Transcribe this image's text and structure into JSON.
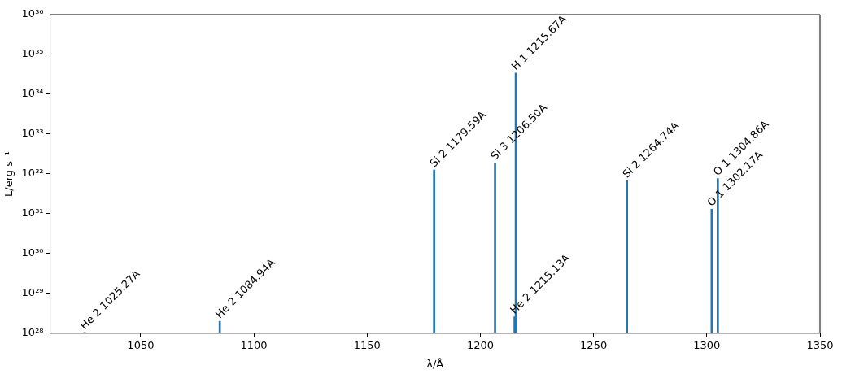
{
  "chart_data": {
    "type": "bar",
    "xlabel": "λ/Å",
    "ylabel": "L/erg s⁻¹",
    "x": [
      1025.27,
      1084.94,
      1179.59,
      1206.5,
      1215.13,
      1215.67,
      1264.74,
      1302.17,
      1304.86
    ],
    "values": [
      1.05e+28,
      2e+28,
      1.25e+32,
      1.9e+32,
      2.6e+28,
      3.4e+34,
      6.7e+31,
      1.3e+31,
      7.7e+31
    ],
    "color": "#1f77b4",
    "log": "y",
    "grid": false,
    "legend": false,
    "xlim": [
      1010,
      1350
    ],
    "xticks": [
      1050,
      1100,
      1150,
      1200,
      1250,
      1300,
      1350
    ],
    "ylim": [
      1e+28,
      1e+36
    ],
    "yticks": [
      {
        "value": 1e+28,
        "label": "10²⁸"
      },
      {
        "value": 1e+29,
        "label": "10²⁹"
      },
      {
        "value": 1e+30,
        "label": "10³⁰"
      },
      {
        "value": 1e+31,
        "label": "10³¹"
      },
      {
        "value": 1e+32,
        "label": "10³²"
      },
      {
        "value": 1e+33,
        "label": "10³³"
      },
      {
        "value": 1e+34,
        "label": "10³⁴"
      },
      {
        "value": 1e+35,
        "label": "10³⁵"
      },
      {
        "value": 1e+36,
        "label": "10³⁶"
      }
    ],
    "annotations": [
      {
        "text": "He 2 1025.27A",
        "x": 1025.27,
        "y": 1.05e+28
      },
      {
        "text": "He 2 1084.94A",
        "x": 1084.94,
        "y": 2e+28
      },
      {
        "text": "Si 2 1179.59A",
        "x": 1179.59,
        "y": 1.25e+32
      },
      {
        "text": "Si 3 1206.50A",
        "x": 1206.5,
        "y": 1.9e+32
      },
      {
        "text": "He 2 1215.13A",
        "x": 1215.13,
        "y": 2.6e+28
      },
      {
        "text": "H 1 1215.67A",
        "x": 1215.67,
        "y": 3.4e+34
      },
      {
        "text": "Si 2 1264.74A",
        "x": 1264.74,
        "y": 6.7e+31
      },
      {
        "text": "O 1 1302.17A",
        "x": 1302.17,
        "y": 1.3e+31
      },
      {
        "text": "O 1 1304.86A",
        "x": 1304.86,
        "y": 7.7e+31
      }
    ]
  }
}
